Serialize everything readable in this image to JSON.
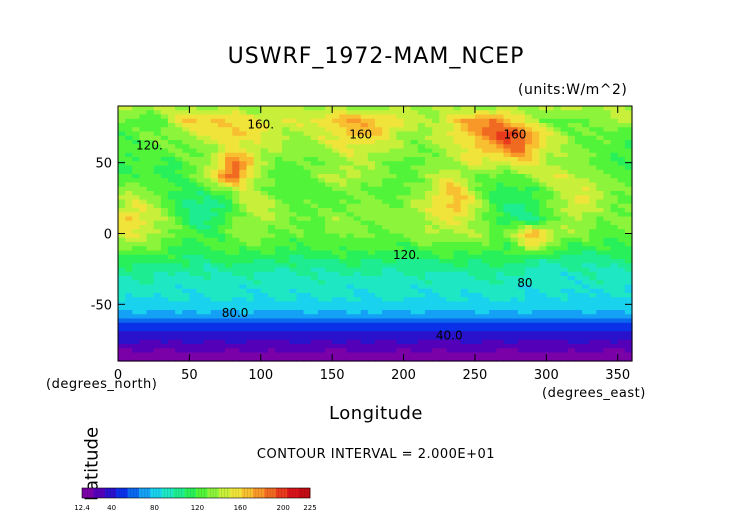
{
  "chart_data": {
    "type": "heatmap",
    "title": "USWRF_1972-MAM_NCEP",
    "units_label": "(units:W/m^2)",
    "xlabel": "Longitude",
    "ylabel": "Latitude",
    "x_unit_label": "(degrees_east)",
    "y_unit_label": "(degrees_north)",
    "contour_interval_text": "CONTOUR INTERVAL = 2.000E+01",
    "xlim": [
      0,
      360
    ],
    "ylim": [
      -90,
      90
    ],
    "x_ticks": [
      0,
      50,
      100,
      150,
      200,
      250,
      300,
      350
    ],
    "y_ticks": [
      -50,
      0,
      50
    ],
    "contour_labels": [
      {
        "text": "160.",
        "x": 100,
        "y": 77
      },
      {
        "text": "160",
        "x": 170,
        "y": 70
      },
      {
        "text": "160",
        "x": 278,
        "y": 70
      },
      {
        "text": "120.",
        "x": 22,
        "y": 62
      },
      {
        "text": "120.",
        "x": 202,
        "y": -15
      },
      {
        "text": "80.0",
        "x": 82,
        "y": -56
      },
      {
        "text": "80",
        "x": 285,
        "y": -35
      },
      {
        "text": "40.0",
        "x": 232,
        "y": -72
      }
    ],
    "colorbar": {
      "tick_labels": [
        "12.4",
        "40",
        "80",
        "120",
        "160",
        "200",
        "225"
      ],
      "min": 12.4,
      "max": 225,
      "colors": [
        "#7a00a8",
        "#5400b8",
        "#2a12cc",
        "#0a30e8",
        "#0a68f0",
        "#14a0f4",
        "#18d2ee",
        "#1ee8c4",
        "#1eec90",
        "#28f05a",
        "#52f43a",
        "#8cf43a",
        "#c8f03a",
        "#f0e43a",
        "#f8c030",
        "#f89828",
        "#f06a22",
        "#e83a1c",
        "#d8141a",
        "#c40c14"
      ]
    },
    "field_rows": [
      {
        "lat": 88,
        "v": [
          140
        ]
      },
      {
        "lat": 80,
        "v": [
          130,
          125,
          120,
          125,
          150,
          160,
          165,
          165,
          160,
          155,
          150,
          150,
          150,
          150,
          155,
          165,
          170,
          170,
          165,
          160,
          150,
          140,
          140,
          150,
          165,
          175,
          185,
          175,
          150,
          140,
          130,
          125,
          125,
          130,
          140,
          145,
          140
        ]
      },
      {
        "lat": 70,
        "v": [
          120,
          125,
          130,
          130,
          135,
          140,
          150,
          160,
          165,
          160,
          150,
          145,
          140,
          140,
          145,
          150,
          160,
          165,
          160,
          150,
          140,
          135,
          140,
          150,
          160,
          170,
          185,
          205,
          200,
          170,
          150,
          140,
          130,
          125,
          125,
          125,
          120
        ]
      },
      {
        "lat": 60,
        "v": [
          120,
          120,
          125,
          125,
          125,
          130,
          135,
          140,
          150,
          150,
          145,
          140,
          135,
          135,
          140,
          145,
          150,
          150,
          145,
          140,
          135,
          130,
          135,
          140,
          150,
          160,
          165,
          175,
          190,
          170,
          150,
          140,
          135,
          130,
          125,
          120,
          120
        ]
      },
      {
        "lat": 50,
        "v": [
          115,
          115,
          120,
          120,
          120,
          125,
          135,
          150,
          190,
          170,
          140,
          130,
          125,
          125,
          130,
          135,
          140,
          140,
          135,
          130,
          125,
          125,
          130,
          135,
          140,
          150,
          150,
          150,
          155,
          150,
          140,
          135,
          135,
          130,
          125,
          120,
          115
        ]
      },
      {
        "lat": 40,
        "v": [
          120,
          125,
          120,
          115,
          115,
          125,
          145,
          160,
          200,
          160,
          130,
          125,
          125,
          130,
          135,
          140,
          145,
          140,
          135,
          130,
          125,
          130,
          140,
          150,
          140,
          130,
          125,
          120,
          130,
          140,
          150,
          150,
          145,
          140,
          130,
          125,
          120
        ]
      },
      {
        "lat": 30,
        "v": [
          130,
          140,
          135,
          125,
          115,
          110,
          110,
          130,
          130,
          150,
          140,
          125,
          120,
          120,
          125,
          130,
          130,
          130,
          125,
          120,
          125,
          135,
          145,
          165,
          160,
          135,
          120,
          115,
          110,
          115,
          130,
          140,
          145,
          155,
          140,
          130,
          125
        ]
      },
      {
        "lat": 20,
        "v": [
          140,
          150,
          145,
          135,
          120,
          105,
          100,
          105,
          120,
          140,
          150,
          140,
          130,
          125,
          125,
          125,
          130,
          130,
          130,
          130,
          135,
          140,
          150,
          160,
          170,
          145,
          125,
          110,
          105,
          110,
          125,
          140,
          150,
          145,
          135,
          130,
          130
        ]
      },
      {
        "lat": 10,
        "v": [
          150,
          165,
          150,
          140,
          125,
          110,
          105,
          110,
          125,
          135,
          140,
          135,
          130,
          130,
          130,
          135,
          135,
          135,
          130,
          130,
          135,
          140,
          145,
          150,
          150,
          140,
          125,
          110,
          105,
          105,
          115,
          130,
          140,
          135,
          130,
          130,
          135
        ]
      },
      {
        "lat": 0,
        "v": [
          145,
          150,
          145,
          140,
          130,
          120,
          115,
          120,
          130,
          135,
          135,
          130,
          125,
          125,
          125,
          130,
          130,
          130,
          130,
          130,
          130,
          135,
          140,
          140,
          140,
          140,
          135,
          130,
          150,
          170,
          160,
          140,
          135,
          130,
          125,
          125,
          130
        ]
      },
      {
        "lat": -10,
        "v": [
          130,
          135,
          130,
          125,
          120,
          115,
          115,
          120,
          125,
          125,
          125,
          120,
          120,
          120,
          120,
          120,
          125,
          125,
          120,
          120,
          120,
          120,
          125,
          125,
          125,
          125,
          120,
          115,
          130,
          150,
          130,
          120,
          115,
          115,
          115,
          115,
          120
        ]
      },
      {
        "lat": -20,
        "v": [
          110,
          110,
          110,
          110,
          110,
          105,
          105,
          105,
          110,
          110,
          110,
          105,
          105,
          105,
          105,
          105,
          110,
          110,
          110,
          105,
          105,
          105,
          110,
          110,
          110,
          110,
          115,
          110,
          105,
          100,
          100,
          100,
          100,
          100,
          100,
          100,
          105
        ]
      },
      {
        "lat": -30,
        "v": [
          100,
          100,
          100,
          95,
          95,
          95,
          95,
          95,
          95,
          95,
          95,
          95,
          95,
          95,
          95,
          95,
          95,
          95,
          95,
          95,
          95,
          95,
          95,
          95,
          95,
          95,
          100,
          100,
          95,
          90,
          90,
          90,
          90,
          95,
          95,
          95,
          95
        ]
      },
      {
        "lat": -40,
        "v": [
          90,
          90,
          90,
          90,
          90,
          90,
          90,
          90,
          90,
          90,
          90,
          90,
          90,
          90,
          90,
          90,
          90,
          90,
          90,
          90,
          90,
          90,
          90,
          90,
          90,
          90,
          90,
          90,
          90,
          88,
          88,
          88,
          88,
          88,
          88,
          88,
          88
        ]
      },
      {
        "lat": -50,
        "v": [
          85,
          85,
          85,
          85,
          85,
          85,
          85,
          85,
          85,
          85,
          85,
          85,
          85,
          85,
          85,
          85,
          85,
          85,
          85,
          85,
          85,
          85,
          85,
          85,
          85,
          85,
          85,
          85,
          85,
          85,
          85,
          85,
          85,
          85,
          85,
          85,
          85
        ]
      },
      {
        "lat": -58,
        "v": [
          72
        ]
      },
      {
        "lat": -64,
        "v": [
          55
        ]
      },
      {
        "lat": -72,
        "v": [
          38
        ]
      },
      {
        "lat": -80,
        "v": [
          30
        ]
      },
      {
        "lat": -86,
        "v": [
          14
        ]
      }
    ]
  }
}
